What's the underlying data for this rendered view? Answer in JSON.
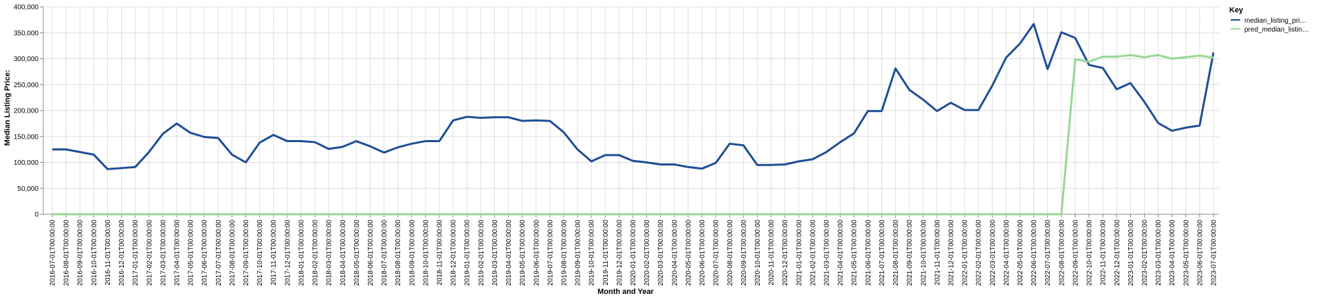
{
  "chart_data": {
    "type": "line",
    "xlabel": "Month and Year",
    "ylabel": "Median Listing Price:",
    "ylim": [
      0,
      400000
    ],
    "yticks": [
      "0",
      "50,000",
      "100,000",
      "150,000",
      "200,000",
      "250,000",
      "300,000",
      "350,000",
      "400,000"
    ],
    "grid": true,
    "legend": {
      "title": "Key",
      "position": "top-right"
    },
    "x": [
      "2016-07-01T00:00:00",
      "2016-08-01T00:00:00",
      "2016-09-01T00:00:00",
      "2016-10-01T00:00:00",
      "2016-11-01T00:00:00",
      "2016-12-01T00:00:00",
      "2017-01-01T00:00:00",
      "2017-02-01T00:00:00",
      "2017-03-01T00:00:00",
      "2017-04-01T00:00:00",
      "2017-05-01T00:00:00",
      "2017-06-01T00:00:00",
      "2017-07-01T00:00:00",
      "2017-08-01T00:00:00",
      "2017-09-01T00:00:00",
      "2017-10-01T00:00:00",
      "2017-11-01T00:00:00",
      "2017-12-01T00:00:00",
      "2018-01-01T00:00:00",
      "2018-02-01T00:00:00",
      "2018-03-01T00:00:00",
      "2018-04-01T00:00:00",
      "2018-05-01T00:00:00",
      "2018-06-01T00:00:00",
      "2018-07-01T00:00:00",
      "2018-08-01T00:00:00",
      "2018-09-01T00:00:00",
      "2018-10-01T00:00:00",
      "2018-11-01T00:00:00",
      "2018-12-01T00:00:00",
      "2019-01-01T00:00:00",
      "2019-02-01T00:00:00",
      "2019-03-01T00:00:00",
      "2019-04-01T00:00:00",
      "2019-05-01T00:00:00",
      "2019-06-01T00:00:00",
      "2019-07-01T00:00:00",
      "2019-08-01T00:00:00",
      "2019-09-01T00:00:00",
      "2019-10-01T00:00:00",
      "2019-11-01T00:00:00",
      "2019-12-01T00:00:00",
      "2020-01-01T00:00:00",
      "2020-02-01T00:00:00",
      "2020-03-01T00:00:00",
      "2020-04-01T00:00:00",
      "2020-05-01T00:00:00",
      "2020-06-01T00:00:00",
      "2020-07-01T00:00:00",
      "2020-08-01T00:00:00",
      "2020-09-01T00:00:00",
      "2020-10-01T00:00:00",
      "2020-11-01T00:00:00",
      "2020-12-01T00:00:00",
      "2021-01-01T00:00:00",
      "2021-02-01T00:00:00",
      "2021-03-01T00:00:00",
      "2021-04-01T00:00:00",
      "2021-05-01T00:00:00",
      "2021-06-01T00:00:00",
      "2021-07-01T00:00:00",
      "2021-08-01T00:00:00",
      "2021-09-01T00:00:00",
      "2021-10-01T00:00:00",
      "2021-11-01T00:00:00",
      "2021-12-01T00:00:00",
      "2022-01-01T00:00:00",
      "2022-02-01T00:00:00",
      "2022-03-01T00:00:00",
      "2022-04-01T00:00:00",
      "2022-05-01T00:00:00",
      "2022-06-01T00:00:00",
      "2022-07-01T00:00:00",
      "2022-08-01T00:00:00",
      "2022-09-01T00:00:00",
      "2022-10-01T00:00:00",
      "2022-11-01T00:00:00",
      "2022-12-01T00:00:00",
      "2023-01-01T00:00:00",
      "2023-02-01T00:00:00",
      "2023-03-01T00:00:00",
      "2023-04-01T00:00:00",
      "2023-05-01T00:00:00",
      "2023-06-01T00:00:00",
      "2023-07-01T00:00:00"
    ],
    "series": [
      {
        "name": "median_listing_pri…",
        "color": "#1f4e96",
        "values": [
          125000,
          125000,
          120000,
          115000,
          87000,
          89000,
          91000,
          120000,
          155000,
          175000,
          157000,
          149000,
          147000,
          115000,
          100000,
          138000,
          153000,
          141000,
          141000,
          139000,
          126000,
          130000,
          141000,
          131000,
          119000,
          129000,
          136000,
          141000,
          141000,
          181000,
          188000,
          186000,
          187000,
          187000,
          180000,
          181000,
          180000,
          158000,
          125000,
          102000,
          114000,
          114000,
          103000,
          100000,
          96000,
          96000,
          91000,
          88000,
          99000,
          136000,
          133000,
          95000,
          95000,
          96000,
          102000,
          106000,
          120000,
          139000,
          156000,
          199000,
          199000,
          281000,
          240000,
          221000,
          199000,
          215000,
          201000,
          201000,
          248000,
          302000,
          329000,
          367000,
          280000,
          351000,
          340000,
          288000,
          282000,
          241000,
          253000,
          217000,
          176000,
          161000,
          167000,
          171000,
          312000
        ]
      },
      {
        "name": "pred_median_listin…",
        "color": "#98d893",
        "values": [
          0,
          0,
          0,
          0,
          0,
          0,
          0,
          0,
          0,
          0,
          0,
          0,
          0,
          0,
          0,
          0,
          0,
          0,
          0,
          0,
          0,
          0,
          0,
          0,
          0,
          0,
          0,
          0,
          0,
          0,
          0,
          0,
          0,
          0,
          0,
          0,
          0,
          0,
          0,
          0,
          0,
          0,
          0,
          0,
          0,
          0,
          0,
          0,
          0,
          0,
          0,
          0,
          0,
          0,
          0,
          0,
          0,
          0,
          0,
          0,
          0,
          0,
          0,
          0,
          0,
          0,
          0,
          0,
          0,
          0,
          0,
          0,
          0,
          0,
          299000,
          294000,
          304000,
          304000,
          307000,
          303000,
          307000,
          300000,
          303000,
          306000,
          302000
        ]
      }
    ]
  }
}
